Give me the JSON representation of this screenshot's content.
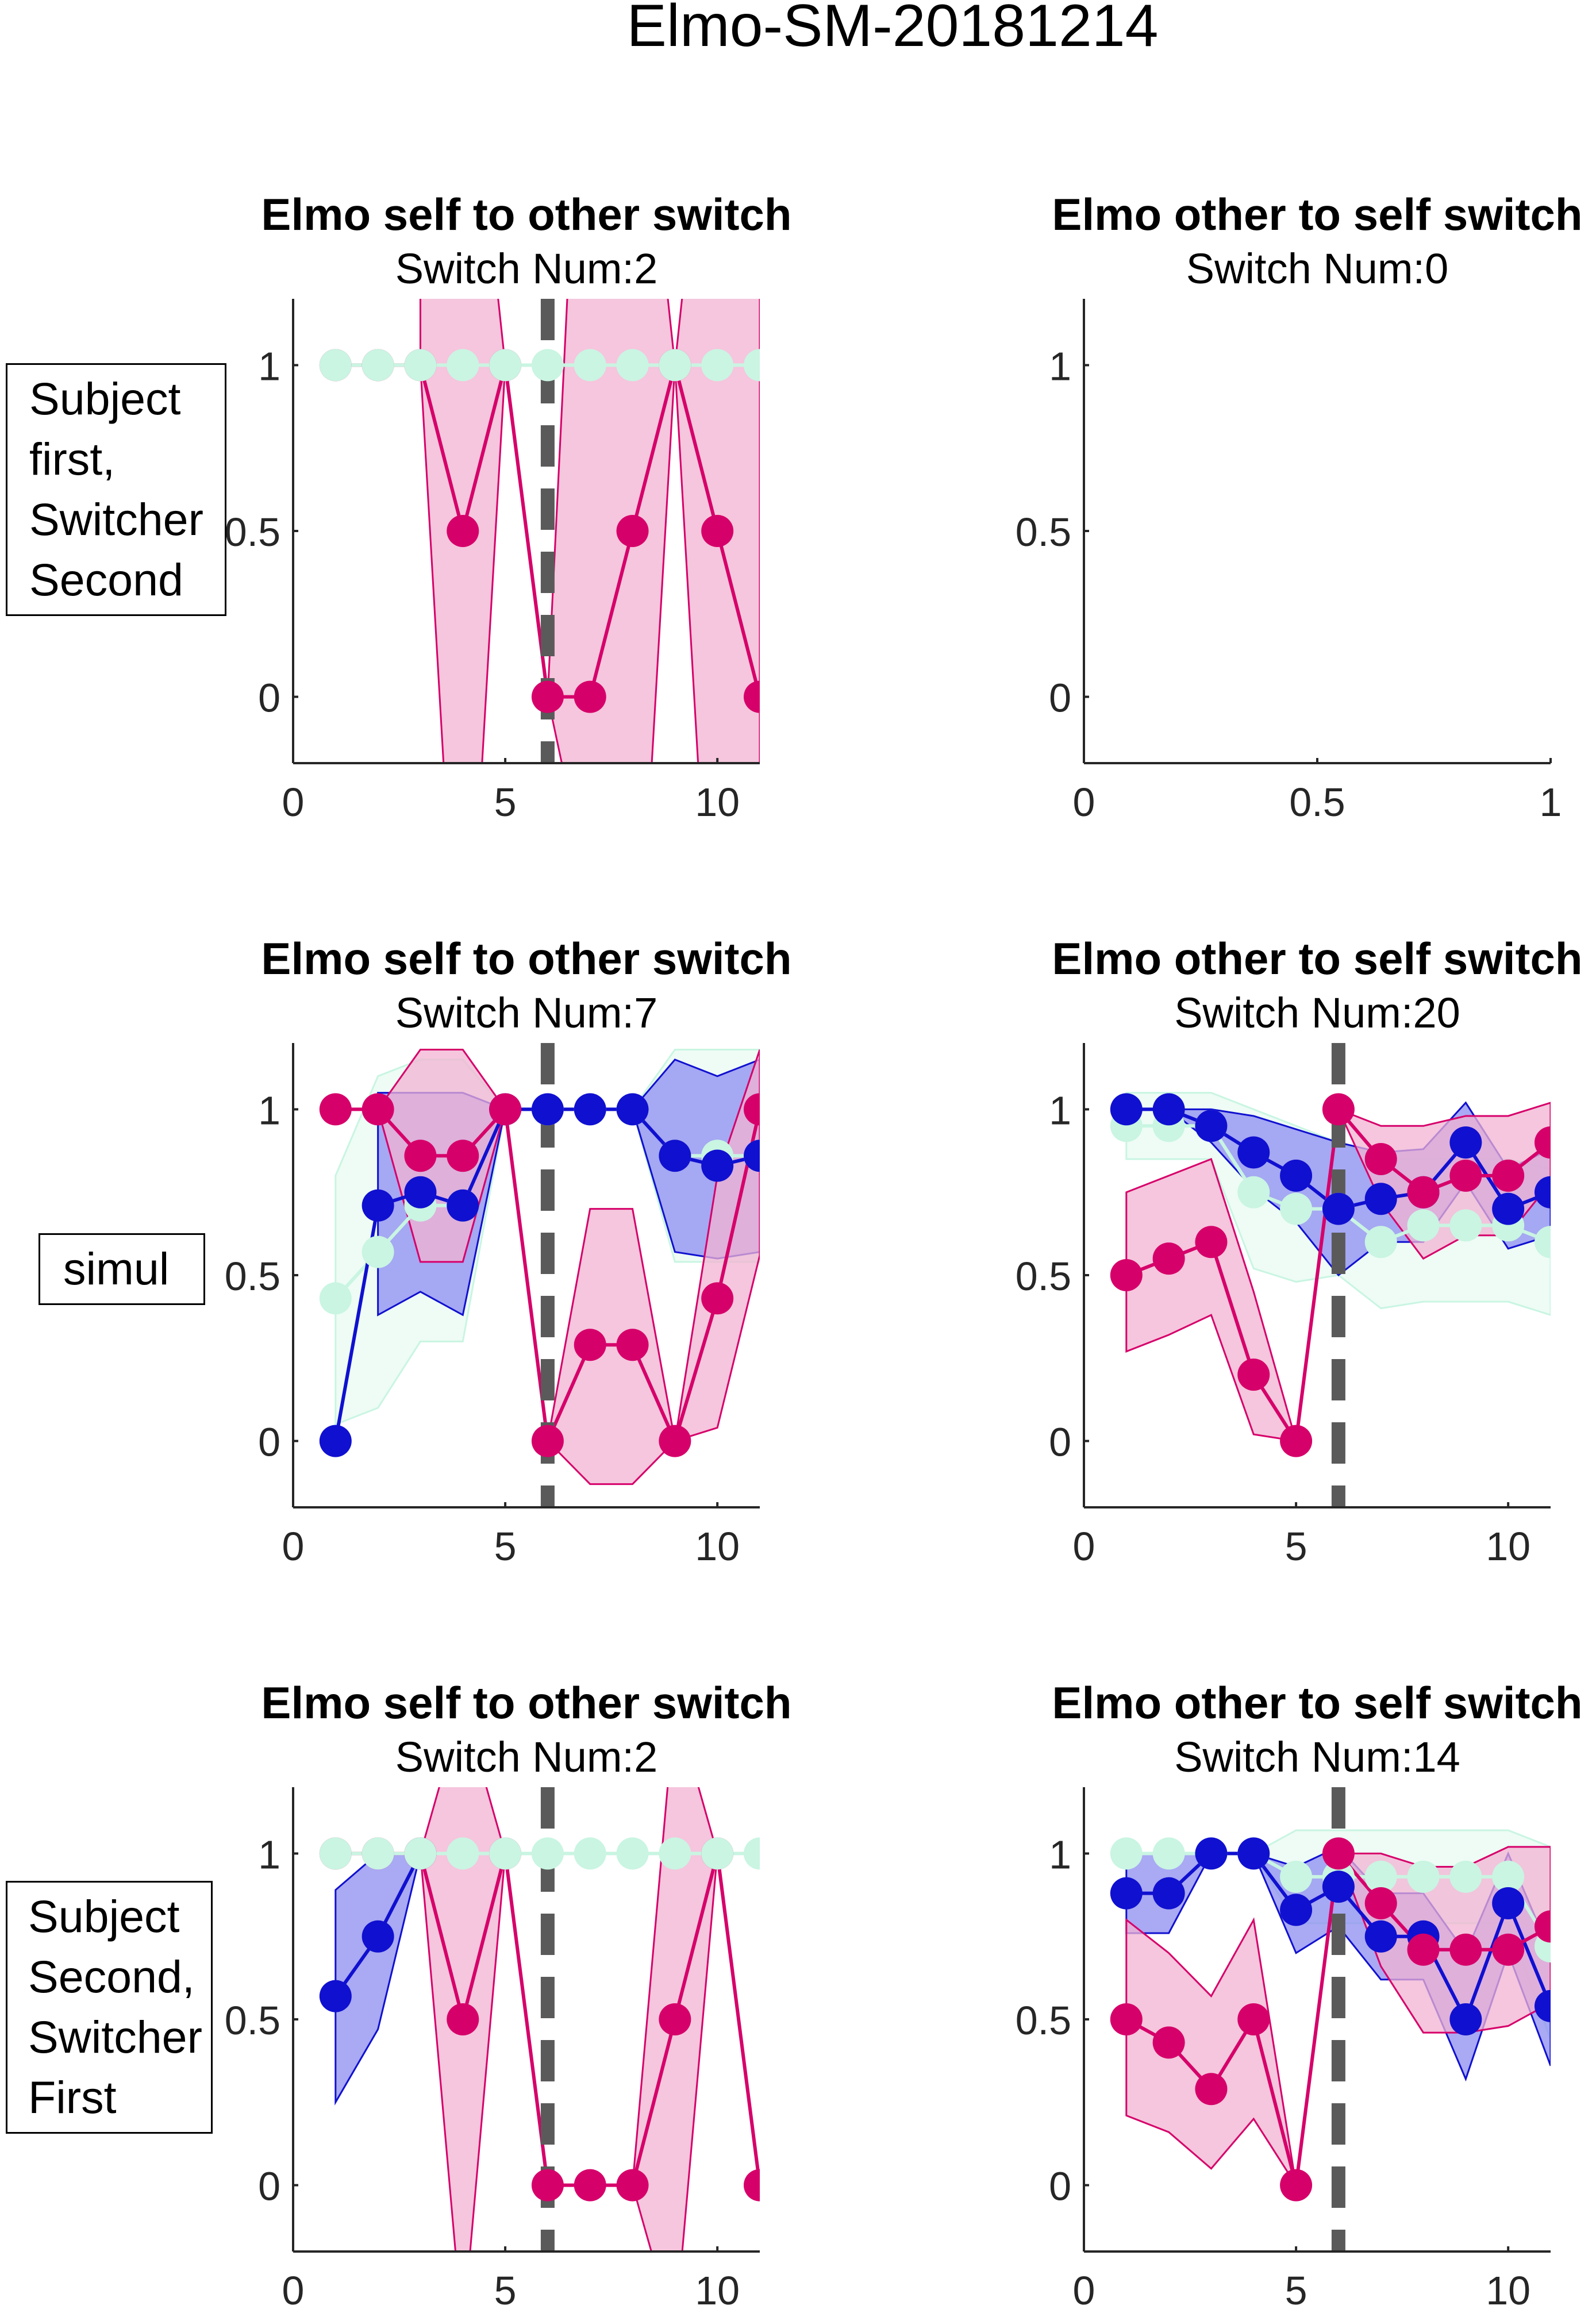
{
  "figure_title": "Elmo-SM-20181214",
  "row_labels": [
    [
      "Subject",
      "first,",
      "Switcher",
      "Second"
    ],
    [
      "simul"
    ],
    [
      "Subject",
      "Second,",
      "Switcher",
      "First"
    ]
  ],
  "colors": {
    "magenta": "#d6006a",
    "magenta_fill": "#f2b3d1",
    "blue": "#1010d0",
    "blue_fill": "#8c8cf0",
    "mint": "#c9f5e2",
    "mint_fill": "#e8fbf2",
    "dashed": "#5a5a5a"
  },
  "chart_data": [
    {
      "type": "line",
      "title": "Elmo self to other switch",
      "subtitle": "Switch Num:2",
      "xlim": [
        0,
        11
      ],
      "ylim": [
        -0.2,
        1.2
      ],
      "xticks": [
        0,
        5,
        10
      ],
      "yticks": [
        0,
        0.5,
        1
      ],
      "switch_line_x": 6,
      "series": [
        {
          "color": "magenta",
          "x": [
            1,
            2,
            3,
            4,
            5,
            6,
            7,
            8,
            9,
            10,
            11
          ],
          "y": [
            1,
            1,
            1,
            0.5,
            1,
            0,
            0,
            0.5,
            1,
            0.5,
            0
          ],
          "upper": [
            null,
            null,
            2.6,
            2.2,
            1,
            0,
            2.6,
            2.2,
            1,
            2.2,
            2.6
          ],
          "lower": [
            null,
            null,
            1,
            -1.2,
            1,
            0,
            -0.6,
            -1.2,
            1,
            -1.2,
            -0.6
          ]
        },
        {
          "color": "mint",
          "x": [
            1,
            2,
            3,
            4,
            5,
            6,
            7,
            8,
            9,
            10,
            11
          ],
          "y": [
            1,
            1,
            1,
            1,
            1,
            1,
            1,
            1,
            1,
            1,
            1
          ]
        }
      ]
    },
    {
      "type": "line",
      "title": "Elmo other to self switch",
      "subtitle": "Switch Num:0",
      "xlim": [
        0,
        1
      ],
      "ylim": [
        -0.2,
        1.2
      ],
      "xticks": [
        0,
        0.5,
        1
      ],
      "yticks": [
        0,
        0.5,
        1
      ],
      "series": []
    },
    {
      "type": "line",
      "title": "Elmo self to other switch",
      "subtitle": "Switch Num:7",
      "xlim": [
        0,
        11
      ],
      "ylim": [
        -0.2,
        1.2
      ],
      "xticks": [
        0,
        5,
        10
      ],
      "yticks": [
        0,
        0.5,
        1
      ],
      "switch_line_x": 6,
      "series": [
        {
          "color": "mint",
          "x": [
            1,
            2,
            3,
            4,
            5,
            6,
            7,
            8,
            9,
            10,
            11
          ],
          "y": [
            0.43,
            0.57,
            0.71,
            0.71,
            1,
            1,
            1,
            1,
            0.86,
            0.86,
            0.86
          ],
          "upper": [
            0.8,
            1.1,
            1.15,
            1.15,
            1,
            1,
            1,
            1,
            1.18,
            1.18,
            1.18
          ],
          "lower": [
            0.05,
            0.1,
            0.3,
            0.3,
            1,
            1,
            1,
            1,
            0.54,
            0.54,
            0.54
          ]
        },
        {
          "color": "blue",
          "x": [
            1,
            2,
            3,
            4,
            5,
            6,
            7,
            8,
            9,
            10,
            11
          ],
          "y": [
            0,
            0.71,
            0.75,
            0.71,
            1,
            1,
            1,
            1,
            0.86,
            0.83,
            0.86
          ],
          "upper": [
            null,
            1.05,
            1.05,
            1.05,
            1,
            1,
            1,
            1,
            1.15,
            1.1,
            1.15
          ],
          "lower": [
            null,
            0.38,
            0.45,
            0.38,
            1,
            1,
            1,
            1,
            0.57,
            0.55,
            0.57
          ]
        },
        {
          "color": "magenta",
          "x": [
            1,
            2,
            3,
            4,
            5,
            6,
            7,
            8,
            9,
            10,
            11
          ],
          "y": [
            1,
            1,
            0.86,
            0.86,
            1,
            0,
            0.29,
            0.29,
            0,
            0.43,
            1
          ],
          "upper": [
            null,
            1,
            1.18,
            1.18,
            1,
            0,
            0.7,
            0.7,
            0,
            0.8,
            1.18
          ],
          "lower": [
            null,
            1,
            0.54,
            0.54,
            1,
            0,
            -0.13,
            -0.13,
            0,
            0.04,
            0.56
          ]
        }
      ]
    },
    {
      "type": "line",
      "title": "Elmo other to self switch",
      "subtitle": "Switch Num:20",
      "xlim": [
        0,
        11
      ],
      "ylim": [
        -0.2,
        1.2
      ],
      "xticks": [
        0,
        5,
        10
      ],
      "yticks": [
        0,
        0.5,
        1
      ],
      "switch_line_x": 6,
      "series": [
        {
          "color": "mint",
          "x": [
            1,
            2,
            3,
            4,
            5,
            6,
            7,
            8,
            9,
            10,
            11
          ],
          "y": [
            0.95,
            0.95,
            0.95,
            0.75,
            0.7,
            0.7,
            0.6,
            0.65,
            0.65,
            0.65,
            0.6
          ],
          "upper": [
            1.05,
            1.05,
            1.05,
            1,
            0.95,
            0.9,
            0.85,
            0.85,
            0.85,
            0.85,
            0.82
          ],
          "lower": [
            0.85,
            0.85,
            0.85,
            0.52,
            0.48,
            0.5,
            0.4,
            0.42,
            0.42,
            0.42,
            0.38
          ]
        },
        {
          "color": "blue",
          "x": [
            1,
            2,
            3,
            4,
            5,
            6,
            7,
            8,
            9,
            10,
            11
          ],
          "y": [
            1,
            1,
            0.95,
            0.87,
            0.8,
            0.7,
            0.73,
            0.75,
            0.9,
            0.7,
            0.75
          ],
          "upper": [
            1,
            1,
            1,
            0.98,
            0.94,
            0.9,
            0.87,
            0.88,
            1.02,
            0.82,
            0.88
          ],
          "lower": [
            1,
            1,
            0.9,
            0.76,
            0.66,
            0.5,
            0.6,
            0.6,
            0.78,
            0.58,
            0.62
          ]
        },
        {
          "color": "magenta",
          "x": [
            1,
            2,
            3,
            4,
            5,
            6,
            7,
            8,
            9,
            10,
            11
          ],
          "y": [
            0.5,
            0.55,
            0.6,
            0.2,
            0,
            1,
            0.85,
            0.75,
            0.8,
            0.8,
            0.9
          ],
          "upper": [
            0.75,
            0.8,
            0.85,
            0.45,
            0,
            1,
            0.95,
            0.95,
            0.98,
            0.98,
            1.02
          ],
          "lower": [
            0.27,
            0.32,
            0.38,
            0.02,
            0,
            1,
            0.72,
            0.55,
            0.62,
            0.62,
            0.78
          ]
        }
      ]
    },
    {
      "type": "line",
      "title": "Elmo self to other switch",
      "subtitle": "Switch Num:2",
      "xlim": [
        0,
        11
      ],
      "ylim": [
        -0.2,
        1.2
      ],
      "xticks": [
        0,
        5,
        10
      ],
      "yticks": [
        0,
        0.5,
        1
      ],
      "switch_line_x": 6,
      "series": [
        {
          "color": "blue",
          "x": [
            1,
            2,
            3
          ],
          "y": [
            0.57,
            0.75,
            1
          ],
          "upper": [
            0.89,
            1,
            1
          ],
          "lower": [
            0.25,
            0.47,
            1
          ]
        },
        {
          "color": "magenta",
          "x": [
            1,
            2,
            3,
            4,
            5,
            6,
            7,
            8,
            9,
            10,
            11
          ],
          "y": [
            1,
            1,
            1,
            0.5,
            1,
            0,
            0,
            0,
            0.5,
            1,
            0
          ],
          "upper": [
            null,
            null,
            1,
            1.45,
            1,
            0,
            0,
            0,
            1.45,
            1,
            0
          ],
          "lower": [
            null,
            null,
            1,
            -0.45,
            1,
            0,
            0,
            0,
            -0.45,
            1,
            0
          ]
        },
        {
          "color": "mint",
          "x": [
            1,
            2,
            3,
            4,
            5,
            6,
            7,
            8,
            9,
            10,
            11
          ],
          "y": [
            1,
            1,
            1,
            1,
            1,
            1,
            1,
            1,
            1,
            1,
            1
          ]
        }
      ]
    },
    {
      "type": "line",
      "title": "Elmo other to self switch",
      "subtitle": "Switch Num:14",
      "xlim": [
        0,
        11
      ],
      "ylim": [
        -0.2,
        1.2
      ],
      "xticks": [
        0,
        5,
        10
      ],
      "yticks": [
        0,
        0.5,
        1
      ],
      "switch_line_x": 6,
      "series": [
        {
          "color": "mint",
          "x": [
            1,
            2,
            3,
            4,
            5,
            6,
            7,
            8,
            9,
            10,
            11
          ],
          "y": [
            1,
            1,
            1,
            1,
            0.93,
            0.93,
            0.93,
            0.93,
            0.93,
            0.93,
            0.72
          ],
          "upper": [
            1,
            1,
            1,
            1,
            1.07,
            1.07,
            1.07,
            1.07,
            1.07,
            1.07,
            1.02
          ],
          "lower": [
            1,
            1,
            1,
            1,
            0.79,
            0.79,
            0.79,
            0.79,
            0.79,
            0.79,
            0.44
          ]
        },
        {
          "color": "blue",
          "x": [
            1,
            2,
            3,
            4,
            5,
            6,
            7,
            8,
            9,
            10,
            11
          ],
          "y": [
            0.88,
            0.88,
            1,
            1,
            0.83,
            0.9,
            0.75,
            0.75,
            0.5,
            0.85,
            0.54
          ],
          "upper": [
            1,
            1,
            1,
            1,
            0.96,
            1.02,
            0.88,
            0.88,
            0.7,
            1,
            0.7
          ],
          "lower": [
            0.76,
            0.76,
            1,
            1,
            0.7,
            0.78,
            0.62,
            0.62,
            0.32,
            0.7,
            0.36
          ]
        },
        {
          "color": "magenta",
          "x": [
            1,
            2,
            3,
            4,
            5,
            6,
            7,
            8,
            9,
            10,
            11
          ],
          "y": [
            0.5,
            0.43,
            0.29,
            0.5,
            0,
            1,
            0.85,
            0.71,
            0.71,
            0.71,
            0.78
          ],
          "upper": [
            0.8,
            0.7,
            0.57,
            0.8,
            0,
            1,
            1.0,
            0.96,
            0.96,
            1.02,
            1.02
          ],
          "lower": [
            0.21,
            0.16,
            0.05,
            0.2,
            0,
            1,
            0.66,
            0.46,
            0.46,
            0.48,
            0.55
          ]
        }
      ]
    }
  ]
}
